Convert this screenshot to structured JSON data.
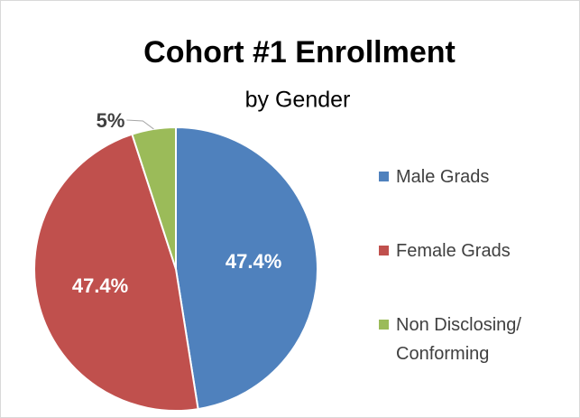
{
  "chart_data": {
    "type": "pie",
    "title": "Cohort #1 Enrollment",
    "subtitle": "by Gender",
    "categories": [
      "Male Grads",
      "Female Grads",
      "Non Disclosing/ Conforming"
    ],
    "values": [
      47.4,
      47.4,
      5
    ],
    "value_labels": [
      "47.4%",
      "47.4%",
      "5%"
    ],
    "colors": [
      "#4f81bd",
      "#c0504d",
      "#9bbb59"
    ],
    "legend": "right"
  }
}
